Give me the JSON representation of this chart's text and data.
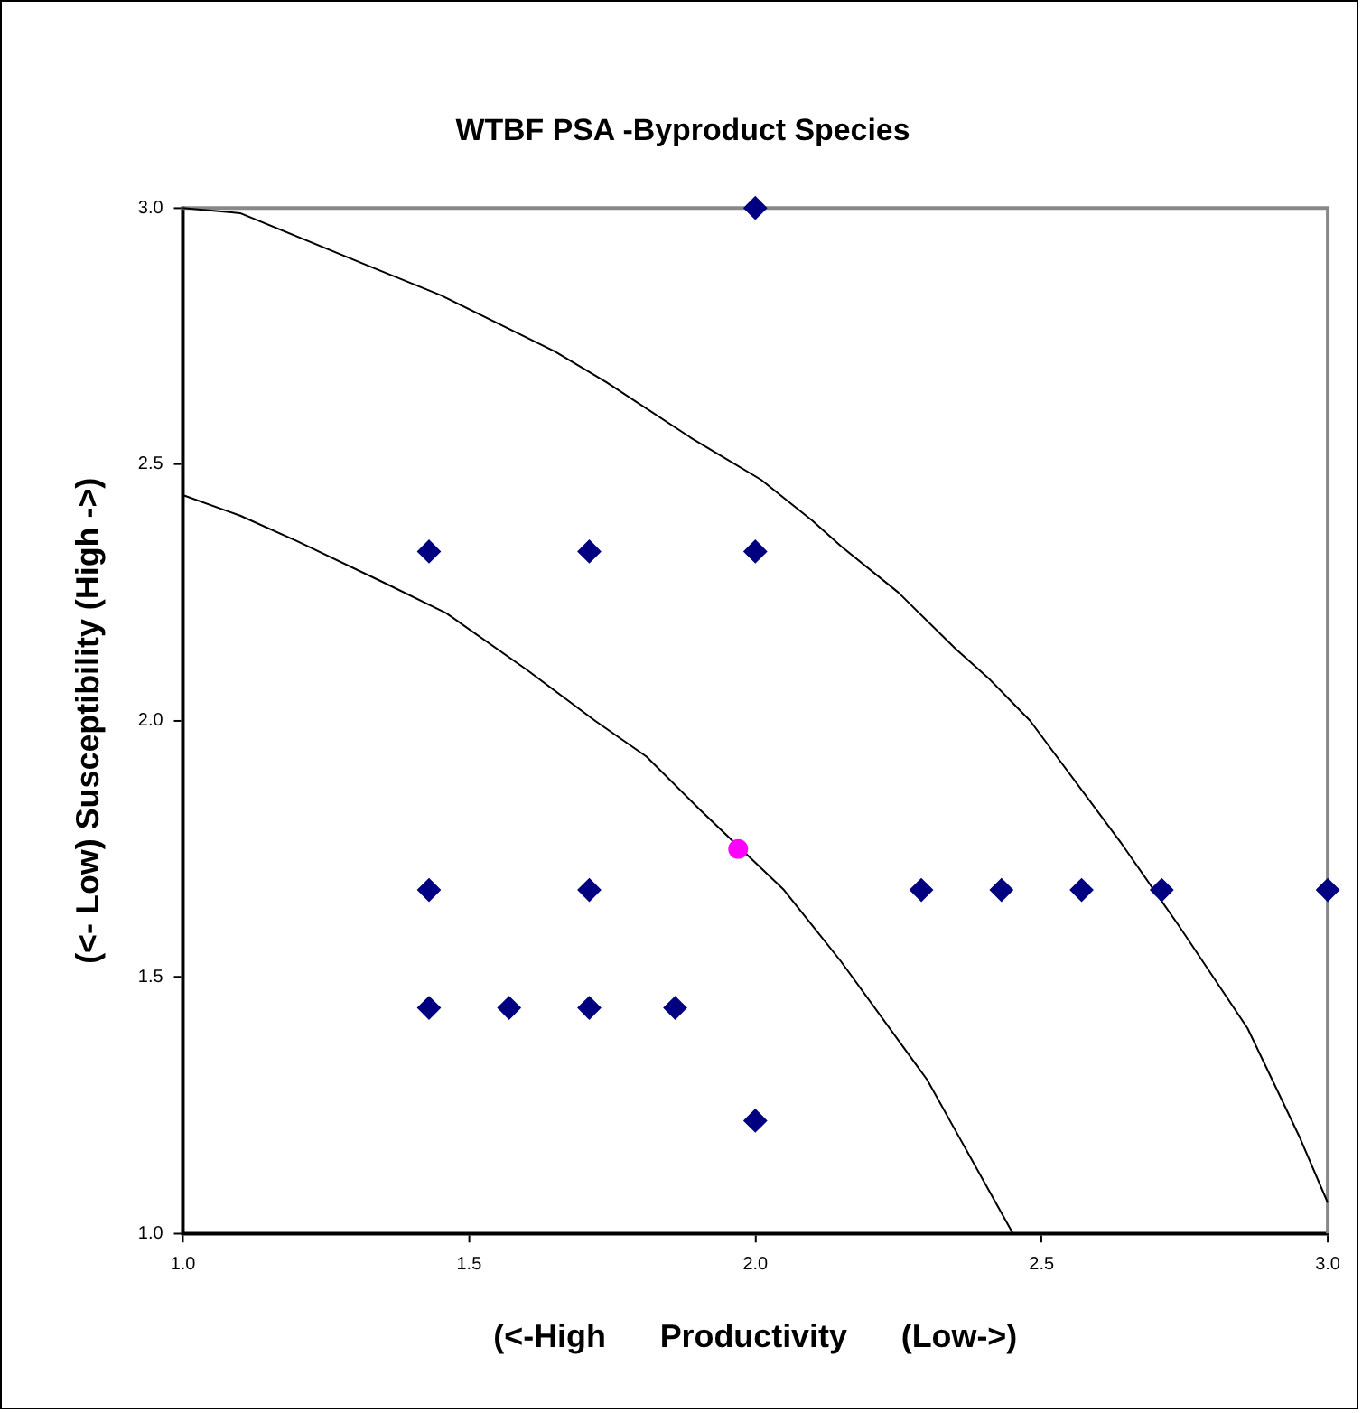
{
  "chart_data": {
    "type": "scatter",
    "title": "WTBF PSA -Byproduct Species",
    "xlabel": "(<-High      Productivity      (Low->)",
    "ylabel": "(<- Low) Susceptibility (High ->)",
    "xlim": [
      1.0,
      3.0
    ],
    "ylim": [
      1.0,
      3.0
    ],
    "xticks": [
      {
        "value": 1.0,
        "label": "1.0"
      },
      {
        "value": 1.5,
        "label": "1.5"
      },
      {
        "value": 2.0,
        "label": "2.0"
      },
      {
        "value": 2.5,
        "label": "2.5"
      },
      {
        "value": 3.0,
        "label": "3.0"
      }
    ],
    "yticks": [
      {
        "value": 1.0,
        "label": "1.0"
      },
      {
        "value": 1.5,
        "label": "1.5"
      },
      {
        "value": 2.0,
        "label": "2.0"
      },
      {
        "value": 2.5,
        "label": "2.5"
      },
      {
        "value": 3.0,
        "label": "3.0"
      }
    ],
    "grid": false,
    "legend": false,
    "series": [
      {
        "type": "line",
        "color": "#000000",
        "marker": "none",
        "x": [
          1.0,
          1.1,
          1.34,
          1.45,
          1.65,
          1.74,
          1.89,
          2.01,
          2.1,
          2.15,
          2.25,
          2.35,
          2.41,
          2.48,
          2.64,
          2.74,
          2.86,
          2.95,
          3.0
        ],
        "values": [
          3.0,
          2.99,
          2.88,
          2.83,
          2.72,
          2.66,
          2.55,
          2.47,
          2.39,
          2.34,
          2.25,
          2.14,
          2.08,
          2.0,
          1.76,
          1.6,
          1.4,
          1.19,
          1.06
        ]
      },
      {
        "type": "line",
        "color": "#000000",
        "marker": "none",
        "x": [
          1.0,
          1.1,
          1.2,
          1.35,
          1.46,
          1.6,
          1.72,
          1.81,
          1.9,
          2.05,
          2.15,
          2.3,
          2.36,
          2.45
        ],
        "values": [
          2.44,
          2.4,
          2.35,
          2.27,
          2.21,
          2.1,
          2.0,
          1.93,
          1.83,
          1.67,
          1.53,
          1.3,
          1.18,
          1.0
        ]
      },
      {
        "type": "scatter",
        "color": "#000080",
        "marker": "diamond",
        "x": [
          2.0,
          1.43,
          1.71,
          2.0,
          1.43,
          1.71,
          2.29,
          2.43,
          2.57,
          2.71,
          3.0,
          1.43,
          1.57,
          1.71,
          1.86,
          2.0
        ],
        "values": [
          3.0,
          2.33,
          2.33,
          2.33,
          1.67,
          1.67,
          1.67,
          1.67,
          1.67,
          1.67,
          1.67,
          1.44,
          1.44,
          1.44,
          1.44,
          1.22
        ]
      },
      {
        "type": "scatter",
        "color": "#ff00ff",
        "marker": "circle",
        "x": [
          1.97
        ],
        "values": [
          1.75
        ]
      }
    ]
  }
}
